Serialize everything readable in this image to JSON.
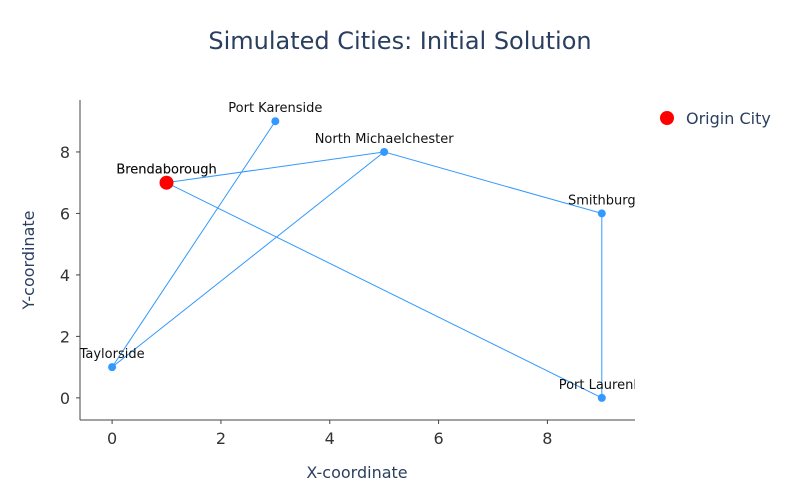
{
  "chart_data": {
    "type": "scatter",
    "title": "Simulated Cities: Initial Solution",
    "x_label": "X-coordinate",
    "y_label": "Y-coordinate",
    "xlim": [
      -0.59,
      9.61
    ],
    "ylim": [
      -0.72,
      9.69
    ],
    "xticks": [
      0,
      2,
      4,
      6,
      8
    ],
    "yticks": [
      0,
      2,
      4,
      6,
      8
    ],
    "route": {
      "color": "#3399ff",
      "x": [
        3,
        0,
        5,
        9,
        9,
        1,
        5
      ],
      "y": [
        9,
        1,
        8,
        6,
        0,
        7,
        8
      ]
    },
    "series": [
      {
        "color": "#3399ff",
        "x": [
          1,
          5,
          0,
          3,
          9,
          9
        ],
        "y": [
          7,
          8,
          1,
          9,
          6,
          0
        ],
        "labels": [
          "Brendaborough",
          "North Michaelchester",
          "Taylorside",
          "Port Karenside",
          "Smithburg",
          "Port Laurenla"
        ]
      },
      {
        "name": "Origin City",
        "color": "#ff0000",
        "x": [
          1
        ],
        "y": [
          7
        ],
        "labels": [
          "Brendaborough"
        ]
      }
    ]
  }
}
